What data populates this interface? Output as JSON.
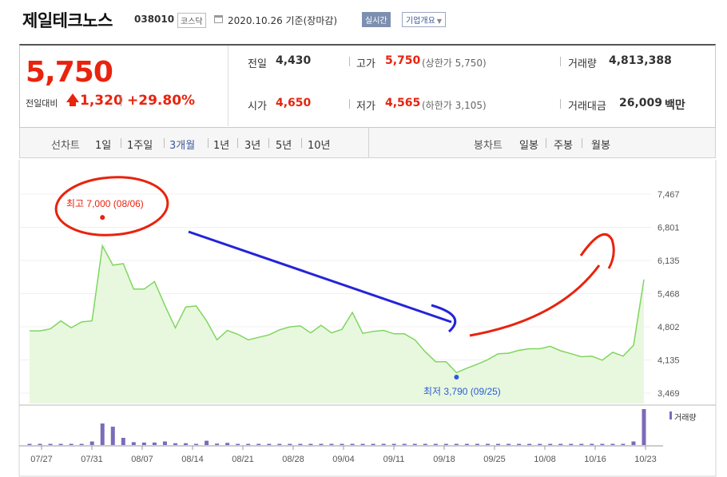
{
  "header": {
    "company_name": "제일테크노스",
    "code": "038010",
    "market": "코스닥",
    "calendar_icon": "calendar-icon",
    "date_text": "2020.10.26 기준(장마감)",
    "live_button": "실시간",
    "overview_button": "기업개요",
    "overview_icon": "caret-down-icon"
  },
  "price": {
    "current": "5,750",
    "vs_label": "전일대비",
    "vs_change": "1,320",
    "vs_rate": "+29.80%",
    "up_icon": "up-triangle-icon"
  },
  "stats": {
    "prev_close_label": "전일",
    "prev_close": "4,430",
    "high_label": "고가",
    "high": "5,750",
    "high_limit": "(상한가 5,750)",
    "volume_label": "거래량",
    "volume": "4,813,388",
    "open_label": "시가",
    "open": "4,650",
    "low_label": "저가",
    "low": "4,565",
    "low_limit": "(하한가 3,105)",
    "amount_label": "거래대금",
    "amount": "26,009",
    "amount_unit": "백만"
  },
  "toolbar": {
    "line_chart_label": "선차트",
    "periods": [
      "1일",
      "1주일",
      "3개월",
      "1년",
      "3년",
      "5년",
      "10년"
    ],
    "selected_period": "3개월",
    "candle_label": "봉차트",
    "candles": [
      "일봉",
      "주봉",
      "월봉"
    ]
  },
  "colors": {
    "up": "#e8230e",
    "down": "#2c5bd6",
    "line": "#7fd65e",
    "area": "#e8f8df",
    "volume": "#7c6bb8",
    "annotation_red": "#e8230e",
    "annotation_blue": "#2424d8"
  },
  "chart_data": {
    "type": "area",
    "y_ticks": [
      "7,467",
      "6,801",
      "6,135",
      "5,468",
      "4,802",
      "4,135",
      "3,469"
    ],
    "ylim": [
      3469,
      7467
    ],
    "x_tick_labels": [
      "07/27",
      "07/31",
      "08/07",
      "08/14",
      "08/21",
      "08/28",
      "09/04",
      "09/11",
      "09/18",
      "09/25",
      "10/08",
      "10/16",
      "10/23"
    ],
    "max_label": "최고 7,000 (08/06)",
    "min_label": "최저 3,790 (09/25)",
    "max_value": 7000,
    "min_value": 3790,
    "volume_legend": "거래량",
    "prices": [
      4720,
      4720,
      4760,
      4920,
      4780,
      4900,
      4920,
      6430,
      6040,
      6070,
      5560,
      5560,
      5710,
      5230,
      4780,
      5200,
      5220,
      4920,
      4540,
      4730,
      4650,
      4540,
      4590,
      4640,
      4740,
      4800,
      4820,
      4680,
      4830,
      4680,
      4750,
      5090,
      4670,
      4710,
      4730,
      4660,
      4660,
      4540,
      4300,
      4100,
      4100,
      3880,
      3970,
      4050,
      4140,
      4260,
      4270,
      4330,
      4360,
      4360,
      4410,
      4320,
      4260,
      4200,
      4210,
      4130,
      4290,
      4210,
      4430,
      5750
    ],
    "volumes": [
      0.02,
      0.02,
      0.03,
      0.02,
      0.02,
      0.03,
      0.1,
      0.6,
      0.51,
      0.2,
      0.08,
      0.07,
      0.07,
      0.1,
      0.05,
      0.05,
      0.03,
      0.12,
      0.04,
      0.06,
      0.03,
      0.03,
      0.02,
      0.02,
      0.02,
      0.03,
      0.03,
      0.02,
      0.02,
      0.02,
      0.02,
      0.03,
      0.02,
      0.02,
      0.03,
      0.02,
      0.02,
      0.02,
      0.02,
      0.02,
      0.02,
      0.02,
      0.01,
      0.01,
      0.01,
      0.02,
      0.01,
      0.01,
      0.01,
      0.01,
      0.01,
      0.01,
      0.01,
      0.01,
      0.01,
      0.01,
      0.01,
      0.01,
      0.1,
      1.0
    ]
  }
}
